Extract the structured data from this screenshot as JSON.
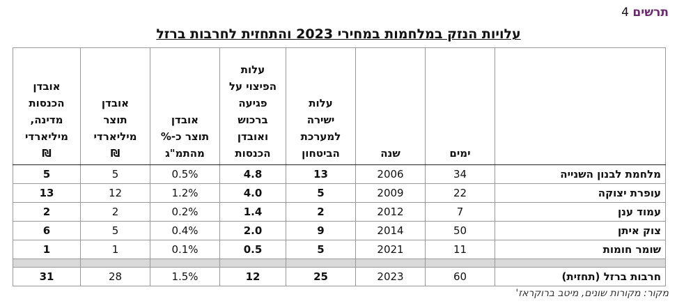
{
  "header": {
    "label": "תרשים",
    "number": "4",
    "title": "עלויות הנזק במלחמות במחירי 2023 והתחזית לחרבות ברזל"
  },
  "table": {
    "columns": [
      [
        "ימים"
      ],
      [
        "שנה"
      ],
      [
        "עלות",
        "ישירה",
        "למערכת",
        "הביטחון"
      ],
      [
        "עלות",
        "הפיצוי על",
        "פגיעה",
        "ברכוש",
        "ואובדן",
        "הכנסות"
      ],
      [
        "אובדן",
        "תוצר כ-%",
        "מהתמ\"ג"
      ],
      [
        "אובדן",
        "תוצר",
        "מיליארדי",
        "₪"
      ],
      [
        "אובדן",
        "הכנסות",
        "מדינה,",
        "מיליארדי",
        "₪"
      ]
    ],
    "rows": [
      [
        "מלחמת לבנון השנייה",
        "34",
        "2006",
        "13",
        "4.8",
        "0.5%",
        "5",
        "5"
      ],
      [
        "עופרת יצוקה",
        "22",
        "2009",
        "5",
        "4.0",
        "1.2%",
        "12",
        "13"
      ],
      [
        "עמוד ענן",
        "7",
        "2012",
        "2",
        "1.4",
        "0.2%",
        "2",
        "2"
      ],
      [
        "צוק איתן",
        "50",
        "2014",
        "9",
        "2.0",
        "0.4%",
        "5",
        "6"
      ],
      [
        "שומר חומות",
        "11",
        "2021",
        "5",
        "0.5",
        "0.1%",
        "1",
        "1"
      ]
    ],
    "forecast": [
      "חרבות ברזל (תחזית)",
      "60",
      "2023",
      "25",
      "12",
      "1.5%",
      "28",
      "31"
    ]
  },
  "source": "מקור: מקורות שונים, מיטב ברוקראז'"
}
